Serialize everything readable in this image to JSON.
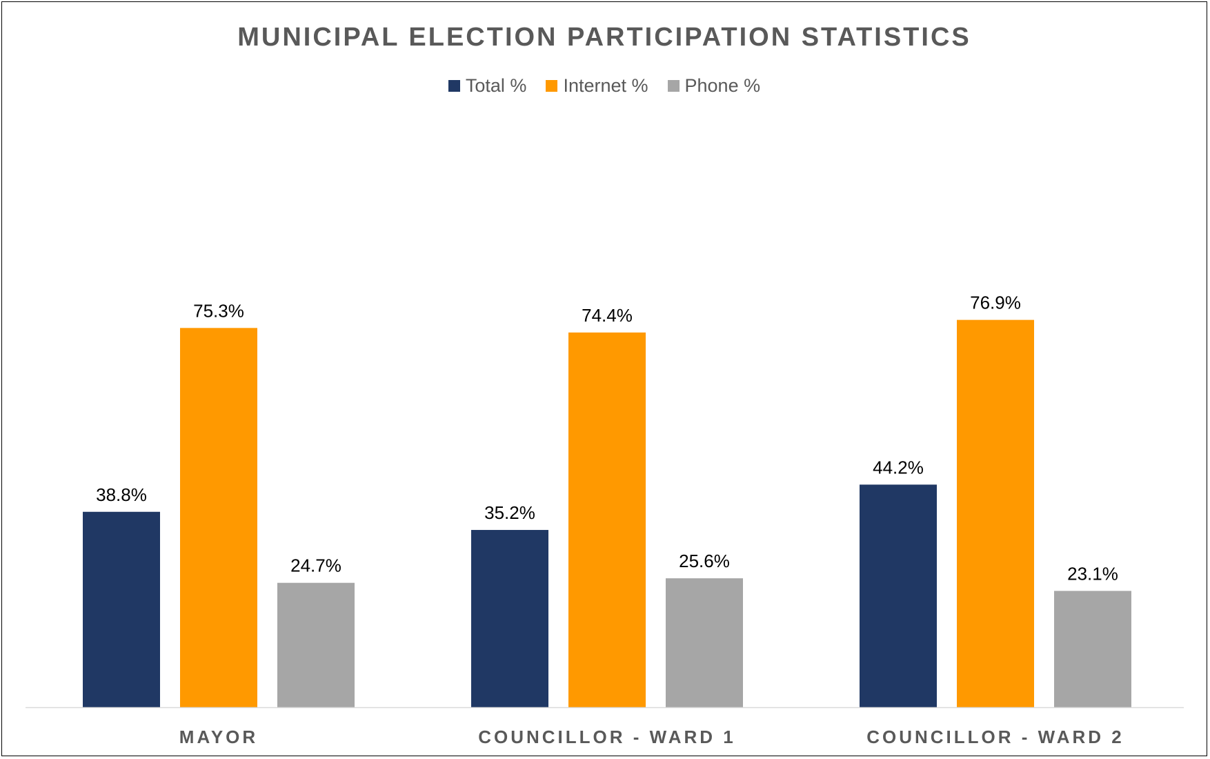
{
  "chart_data": {
    "type": "bar",
    "title": "MUNICIPAL ELECTION PARTICIPATION STATISTICS",
    "categories": [
      "MAYOR",
      "COUNCILLOR - WARD 1",
      "COUNCILLOR - WARD 2"
    ],
    "series": [
      {
        "name": "Total %",
        "color": "#203864",
        "values": [
          38.8,
          35.2,
          44.2
        ],
        "labels": [
          "38.8%",
          "35.2%",
          "44.2%"
        ]
      },
      {
        "name": "Internet %",
        "color": "#FF9900",
        "values": [
          75.3,
          74.4,
          76.9
        ],
        "labels": [
          "75.3%",
          "74.4%",
          "76.9%"
        ]
      },
      {
        "name": "Phone %",
        "color": "#A6A6A6",
        "values": [
          24.7,
          25.6,
          23.1
        ],
        "labels": [
          "24.7%",
          "25.6%",
          "23.1%"
        ]
      }
    ],
    "xlabel": "",
    "ylabel": "",
    "ylim": [
      0,
      100
    ],
    "grid": false,
    "legend_position": "top",
    "axis_color": "#D9D9D9"
  }
}
